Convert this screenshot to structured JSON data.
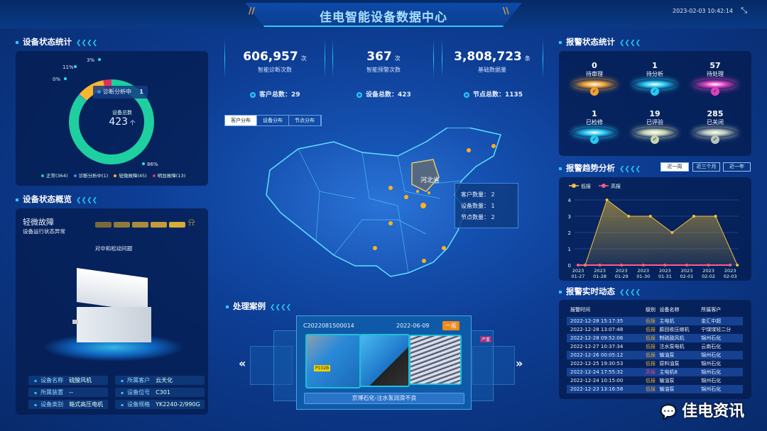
{
  "header": {
    "title": "佳电智能设备数据中心",
    "datetime": "2023-02-03 10:42:14",
    "icons": [
      "fullscreen-icon"
    ]
  },
  "left": {
    "status_stats": {
      "title": "设备状态统计",
      "center_label": "设备总数",
      "center_value": "423",
      "center_unit": "个",
      "tooltip": {
        "label": "诊断分析中",
        "value": "1"
      },
      "slices": [
        {
          "label": "正常",
          "count": 364,
          "percent": "86%",
          "color": "#1ecfa0"
        },
        {
          "label": "诊断分析中",
          "count": 1,
          "percent": "0%",
          "color": "#2f8cff"
        },
        {
          "label": "轻微故障",
          "count": 45,
          "percent": "11%",
          "color": "#f5b731"
        },
        {
          "label": "明显故障",
          "count": 13,
          "percent": "3%",
          "color": "#e0325f"
        }
      ],
      "legend": [
        "正常(364)",
        "诊断分析中(1)",
        "轻微故障(45)",
        "明显故障(13)"
      ]
    },
    "overview": {
      "title": "设备状态概览",
      "status": "轻微故障",
      "status_desc": "设备运行状态异常",
      "level": 5,
      "issue": "对中和松动问题",
      "fields": [
        {
          "k": "设备名称",
          "v": "硫酸风机"
        },
        {
          "k": "所属客户",
          "v": "云天化"
        },
        {
          "k": "所属装置",
          "v": "--"
        },
        {
          "k": "设备位号",
          "v": "C301"
        },
        {
          "k": "设备类别",
          "v": "箱式高压电机"
        },
        {
          "k": "设备规格",
          "v": "YK2240-2/990G"
        }
      ]
    }
  },
  "center": {
    "stats": [
      {
        "value": "606,957",
        "unit": "次",
        "label": "智能诊断次数"
      },
      {
        "value": "367",
        "unit": "次",
        "label": "智能预警次数"
      },
      {
        "value": "3,808,723",
        "unit": "条",
        "label": "基础数据量"
      }
    ],
    "totals": [
      "客户总数：29",
      "设备总数：423",
      "节点总数：1135"
    ],
    "map_tabs": [
      "客户分布",
      "设备分布",
      "节点分布"
    ],
    "map_province": "河北省",
    "map_tooltip": [
      "客户数量： 2",
      "设备数量： 1",
      "节点数量： 2"
    ],
    "cases": {
      "title": "处理案例",
      "id": "C2022081500014",
      "date": "2022-06-09",
      "badge": "一般",
      "caption": "京博石化-注水泵润滑不良",
      "side_badge": "严重"
    }
  },
  "right": {
    "alarm_stats": {
      "title": "报警状态统计",
      "items": [
        {
          "value": "0",
          "label": "待审理",
          "color": "#f0a030"
        },
        {
          "value": "1",
          "label": "待分析",
          "color": "#27c8f0"
        },
        {
          "value": "57",
          "label": "待处理",
          "color": "#e040c0"
        },
        {
          "value": "1",
          "label": "已检修",
          "color": "#27c8f0"
        },
        {
          "value": "19",
          "label": "已评验",
          "color": "#c8d4b0"
        },
        {
          "value": "285",
          "label": "已关闭",
          "color": "#b8c4b8"
        }
      ]
    },
    "trend": {
      "title": "报警趋势分析",
      "ranges": [
        "近一周",
        "近三个月",
        "近一年"
      ]
    },
    "realtime": {
      "title": "报警实时动态",
      "headers": [
        "报警时间",
        "级别",
        "设备名称",
        "所属客户"
      ],
      "rows": [
        [
          "2022-12-28 15:17:35",
          "低报",
          "主电机",
          "金汇中超"
        ],
        [
          "2022-12-28 13:07:48",
          "低报",
          "膨回收压缩机",
          "宁煤煤轻二分"
        ],
        [
          "2022-12-28 09:52:06",
          "低报",
          "制硫鼓风机",
          "锦州石化"
        ],
        [
          "2022-12-27 10:37:34",
          "低报",
          "注水泵电机",
          "云南石化"
        ],
        [
          "2022-12-26 00:05:12",
          "低报",
          "输油泵",
          "锦州石化"
        ],
        [
          "2022-12-25 19:30:53",
          "低报",
          "原料油泵",
          "锦州石化"
        ],
        [
          "2022-12-24 17:55:32",
          "高报",
          "主电机8",
          "锦州石化"
        ],
        [
          "2022-12-24 10:15:00",
          "低报",
          "输油泵",
          "锦州石化"
        ],
        [
          "2022-12-23 13:16:58",
          "低报",
          "输油泵",
          "锦州石化"
        ]
      ]
    }
  },
  "watermark": "佳电资讯",
  "chart_data": {
    "type": "line",
    "categories": [
      "2023\n01-27",
      "2023\n01-28",
      "2023\n01-29",
      "2023\n01-30",
      "2023\n01-31",
      "2023\n02-01",
      "2023\n02-02",
      "2023\n02-03"
    ],
    "series": [
      {
        "name": "低报",
        "color": "#f5c242",
        "area": true,
        "values": [
          0,
          4,
          3,
          3,
          2,
          3,
          3,
          0
        ]
      },
      {
        "name": "高报",
        "color": "#ff5a8a",
        "values": [
          0,
          0,
          0,
          0,
          0,
          0,
          0,
          0
        ]
      }
    ],
    "ylim": [
      0,
      4
    ],
    "yticks": [
      0,
      1,
      2,
      3,
      4
    ],
    "grid": true,
    "legend": "top-left"
  }
}
